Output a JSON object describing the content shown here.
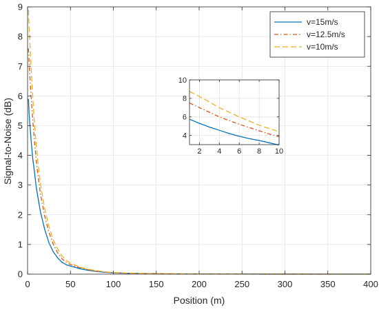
{
  "chart_data": [
    {
      "type": "line",
      "title": "",
      "xlabel": "Position (m)",
      "ylabel": "Signal-to-Noise (dB)",
      "xlim": [
        0,
        400
      ],
      "ylim": [
        0,
        9
      ],
      "xticks": [
        0,
        50,
        100,
        150,
        200,
        250,
        300,
        350,
        400
      ],
      "yticks": [
        0,
        1,
        2,
        3,
        4,
        5,
        6,
        7,
        8,
        9
      ],
      "grid": true,
      "legend": "top-right",
      "series": [
        {
          "name": "v=15m/s",
          "color": "#0072BD",
          "dash": "solid",
          "x": [
            1,
            2,
            4,
            6,
            8,
            10,
            12,
            15,
            20,
            25,
            30,
            35,
            40,
            45,
            50,
            60,
            70,
            80,
            90,
            100,
            120,
            150,
            200,
            250,
            300,
            350,
            400
          ],
          "y": [
            5.9,
            5.3,
            4.55,
            3.9,
            3.45,
            2.95,
            2.6,
            2.1,
            1.5,
            1.05,
            0.75,
            0.55,
            0.4,
            0.32,
            0.27,
            0.19,
            0.13,
            0.09,
            0.06,
            0.045,
            0.025,
            0.012,
            0.005,
            0.002,
            0.001,
            0.0005,
            0.0002
          ]
        },
        {
          "name": "v=12.5m/s",
          "color": "#D95319",
          "dash": "dashdot",
          "x": [
            1,
            2,
            4,
            6,
            8,
            10,
            12,
            15,
            20,
            25,
            30,
            35,
            40,
            45,
            50,
            60,
            70,
            80,
            90,
            100,
            120,
            150,
            200,
            250,
            300,
            350,
            400
          ],
          "y": [
            7.6,
            7.0,
            6.0,
            5.2,
            4.5,
            3.85,
            3.35,
            2.7,
            1.95,
            1.4,
            1.0,
            0.72,
            0.52,
            0.4,
            0.32,
            0.22,
            0.15,
            0.1,
            0.07,
            0.05,
            0.028,
            0.014,
            0.006,
            0.0025,
            0.0012,
            0.0006,
            0.0003
          ]
        },
        {
          "name": "v=10m/s",
          "color": "#EDB120",
          "dash": "dashed",
          "x": [
            1,
            2,
            4,
            6,
            8,
            10,
            12,
            15,
            20,
            25,
            30,
            35,
            40,
            45,
            50,
            60,
            70,
            80,
            90,
            100,
            120,
            150,
            200,
            250,
            300,
            350,
            400
          ],
          "y": [
            8.9,
            8.2,
            7.0,
            6.0,
            5.1,
            4.4,
            3.8,
            3.05,
            2.2,
            1.6,
            1.15,
            0.85,
            0.62,
            0.47,
            0.37,
            0.25,
            0.17,
            0.12,
            0.08,
            0.055,
            0.03,
            0.016,
            0.007,
            0.003,
            0.0014,
            0.0007,
            0.0003
          ]
        }
      ]
    },
    {
      "type": "line",
      "title": "",
      "xlabel": "",
      "ylabel": "",
      "xlim": [
        1,
        10
      ],
      "ylim": [
        3,
        10
      ],
      "xticks": [
        2,
        4,
        6,
        8,
        10
      ],
      "yticks": [
        4,
        6,
        8,
        10
      ],
      "grid": true,
      "legend": "none",
      "series": [
        {
          "color": "#0072BD",
          "dash": "solid",
          "x": [
            1,
            2,
            3,
            4,
            5,
            6,
            7,
            8,
            9,
            10
          ],
          "y": [
            5.75,
            5.3,
            4.9,
            4.55,
            4.2,
            3.9,
            3.65,
            3.45,
            3.2,
            2.95
          ]
        },
        {
          "color": "#D95319",
          "dash": "dashdot",
          "x": [
            1,
            2,
            3,
            4,
            5,
            6,
            7,
            8,
            9,
            10
          ],
          "y": [
            7.5,
            7.0,
            6.5,
            6.0,
            5.6,
            5.2,
            4.85,
            4.5,
            4.15,
            3.85
          ]
        },
        {
          "color": "#EDB120",
          "dash": "dashed",
          "x": [
            1,
            2,
            3,
            4,
            5,
            6,
            7,
            8,
            9,
            10
          ],
          "y": [
            8.75,
            8.2,
            7.6,
            7.0,
            6.5,
            6.0,
            5.55,
            5.1,
            4.75,
            4.4
          ]
        }
      ]
    }
  ]
}
